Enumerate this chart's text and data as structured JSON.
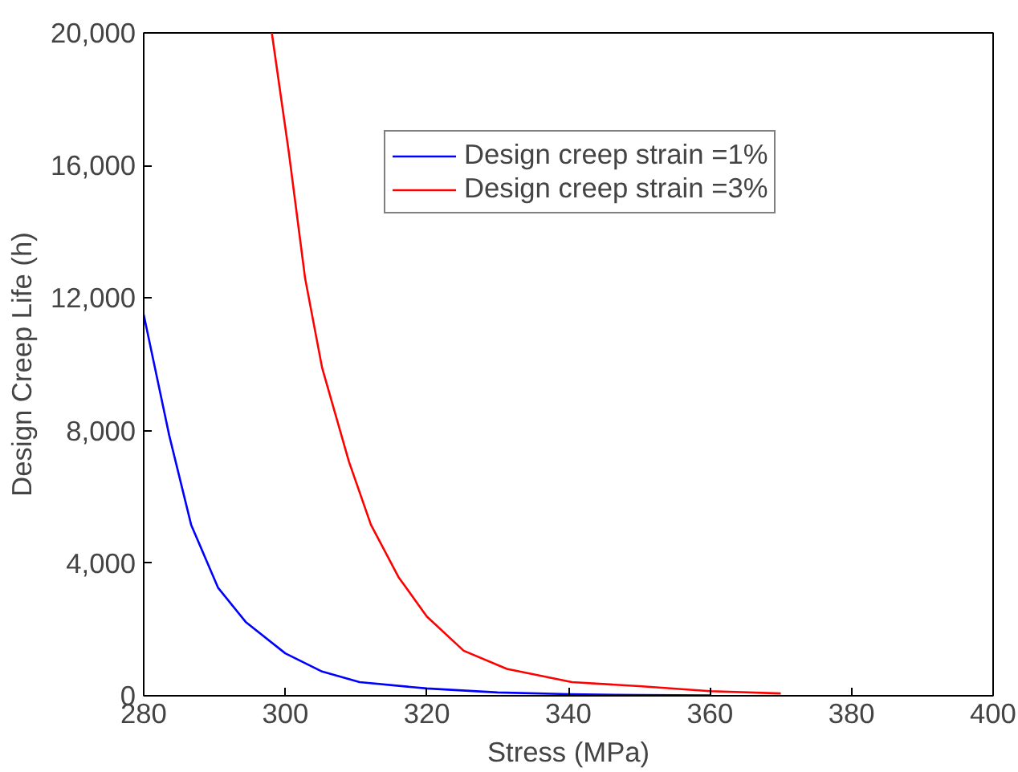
{
  "chart_data": {
    "type": "line",
    "xlabel": "Stress (MPa)",
    "ylabel": "Design Creep Life (h)",
    "xlim": [
      280,
      400
    ],
    "xticks": [
      280,
      300,
      320,
      340,
      360,
      380,
      400
    ],
    "ylim": [
      0,
      20000
    ],
    "yticks": [
      {
        "value": 0,
        "label": "0"
      },
      {
        "value": 4000,
        "label": "4,000"
      },
      {
        "value": 8000,
        "label": "8,000"
      },
      {
        "value": 12000,
        "label": "12,000"
      },
      {
        "value": 16000,
        "label": "16,000"
      },
      {
        "value": 20000,
        "label": "20,000"
      }
    ],
    "grid": false,
    "legend": "top right",
    "marker": "none",
    "line_style": "solid",
    "series": [
      {
        "name": "Design creep strain =1%",
        "color": "#0000ff",
        "x": [
          280,
          283.6,
          286.7,
          290.5,
          294.4,
          300,
          305.2,
          310.5,
          320,
          330,
          340,
          350,
          360
        ],
        "values": [
          11500,
          7860,
          5160,
          3260,
          2230,
          1280,
          730,
          410,
          220,
          100,
          50,
          20,
          10
        ]
      },
      {
        "name": "Design creep strain =3%",
        "color": "#ff0000",
        "x": [
          298.1,
          300.5,
          302.8,
          305.2,
          309,
          312.1,
          316,
          320,
          325.2,
          331.3,
          340.5,
          350,
          360,
          370
        ],
        "values": [
          20000,
          16400,
          12600,
          9900,
          7060,
          5160,
          3580,
          2390,
          1360,
          810,
          410,
          290,
          140,
          70
        ]
      }
    ]
  }
}
